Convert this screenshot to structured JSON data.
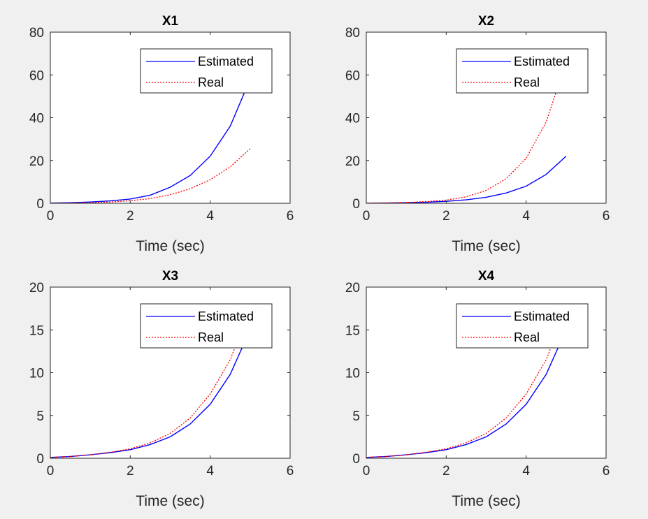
{
  "figure": {
    "background": "#f0f0f0"
  },
  "colors": {
    "estimated": "#0000ff",
    "real": "#ff0000",
    "axis": "#262626"
  },
  "chart_data": [
    {
      "type": "line",
      "title": "X1",
      "xlabel": "Time (sec)",
      "ylabel": "",
      "xlim": [
        0,
        6
      ],
      "ylim": [
        0,
        80
      ],
      "xticks": [
        0,
        2,
        4,
        6
      ],
      "yticks": [
        0,
        20,
        40,
        60,
        80
      ],
      "legend": {
        "placement": "top-right",
        "entries": [
          "Estimated",
          "Real"
        ]
      },
      "series": [
        {
          "name": "Estimated",
          "style": "solid",
          "color": "#0000ff",
          "x": [
            0,
            0.5,
            1,
            1.5,
            2,
            2.5,
            3,
            3.5,
            4,
            4.5,
            5
          ],
          "y": [
            0.1,
            0.25,
            0.6,
            1.1,
            2.0,
            3.8,
            7.5,
            13.0,
            22.0,
            36.0,
            58.0
          ]
        },
        {
          "name": "Real",
          "style": "dotted",
          "color": "#ff0000",
          "x": [
            0,
            0.5,
            1,
            1.5,
            2,
            2.5,
            3,
            3.5,
            4,
            4.5,
            5
          ],
          "y": [
            0.0,
            0.1,
            0.3,
            0.6,
            1.2,
            2.2,
            4.0,
            6.8,
            11.0,
            17.0,
            25.5
          ]
        }
      ]
    },
    {
      "type": "line",
      "title": "X2",
      "xlabel": "Time (sec)",
      "ylabel": "",
      "xlim": [
        0,
        6
      ],
      "ylim": [
        0,
        80
      ],
      "xticks": [
        0,
        2,
        4,
        6
      ],
      "yticks": [
        0,
        20,
        40,
        60,
        80
      ],
      "legend": {
        "placement": "top-right",
        "entries": [
          "Estimated",
          "Real"
        ]
      },
      "series": [
        {
          "name": "Estimated",
          "style": "solid",
          "color": "#0000ff",
          "x": [
            0,
            0.5,
            1,
            1.5,
            2,
            2.5,
            3,
            3.5,
            4,
            4.5,
            5
          ],
          "y": [
            0.0,
            0.1,
            0.25,
            0.5,
            0.9,
            1.6,
            2.8,
            4.8,
            8.0,
            13.5,
            22.0
          ]
        },
        {
          "name": "Real",
          "style": "dotted",
          "color": "#ff0000",
          "x": [
            0,
            0.5,
            1,
            1.5,
            2,
            2.5,
            3,
            3.5,
            4,
            4.5,
            5
          ],
          "y": [
            0.1,
            0.2,
            0.4,
            0.8,
            1.5,
            3.0,
            6.0,
            11.5,
            21.0,
            38.0,
            66.0
          ]
        }
      ]
    },
    {
      "type": "line",
      "title": "X3",
      "xlabel": "Time (sec)",
      "ylabel": "",
      "xlim": [
        0,
        6
      ],
      "ylim": [
        0,
        20
      ],
      "xticks": [
        0,
        2,
        4,
        6
      ],
      "yticks": [
        0,
        5,
        10,
        15,
        20
      ],
      "legend": {
        "placement": "top-right",
        "entries": [
          "Estimated",
          "Real"
        ]
      },
      "series": [
        {
          "name": "Estimated",
          "style": "solid",
          "color": "#0000ff",
          "x": [
            0,
            0.5,
            1,
            1.5,
            2,
            2.5,
            3,
            3.5,
            4,
            4.5,
            5
          ],
          "y": [
            0.1,
            0.2,
            0.4,
            0.65,
            1.0,
            1.6,
            2.5,
            4.0,
            6.3,
            9.8,
            15.0
          ]
        },
        {
          "name": "Real",
          "style": "dotted",
          "color": "#ff0000",
          "x": [
            0,
            0.5,
            1,
            1.5,
            2,
            2.5,
            3,
            3.5,
            4,
            4.5,
            5
          ],
          "y": [
            0.1,
            0.2,
            0.4,
            0.7,
            1.1,
            1.8,
            2.9,
            4.7,
            7.5,
            11.5,
            17.5
          ]
        }
      ]
    },
    {
      "type": "line",
      "title": "X4",
      "xlabel": "Time (sec)",
      "ylabel": "",
      "xlim": [
        0,
        6
      ],
      "ylim": [
        0,
        20
      ],
      "xticks": [
        0,
        2,
        4,
        6
      ],
      "yticks": [
        0,
        5,
        10,
        15,
        20
      ],
      "legend": {
        "placement": "top-right",
        "entries": [
          "Estimated",
          "Real"
        ]
      },
      "series": [
        {
          "name": "Estimated",
          "style": "solid",
          "color": "#0000ff",
          "x": [
            0,
            0.5,
            1,
            1.5,
            2,
            2.5,
            3,
            3.5,
            4,
            4.5,
            5
          ],
          "y": [
            0.1,
            0.2,
            0.4,
            0.65,
            1.0,
            1.6,
            2.5,
            4.0,
            6.3,
            9.8,
            15.0
          ]
        },
        {
          "name": "Real",
          "style": "dotted",
          "color": "#ff0000",
          "x": [
            0,
            0.5,
            1,
            1.5,
            2,
            2.5,
            3,
            3.5,
            4,
            4.5,
            5
          ],
          "y": [
            0.1,
            0.2,
            0.4,
            0.7,
            1.1,
            1.8,
            2.9,
            4.7,
            7.5,
            11.5,
            17.5
          ]
        }
      ]
    }
  ]
}
